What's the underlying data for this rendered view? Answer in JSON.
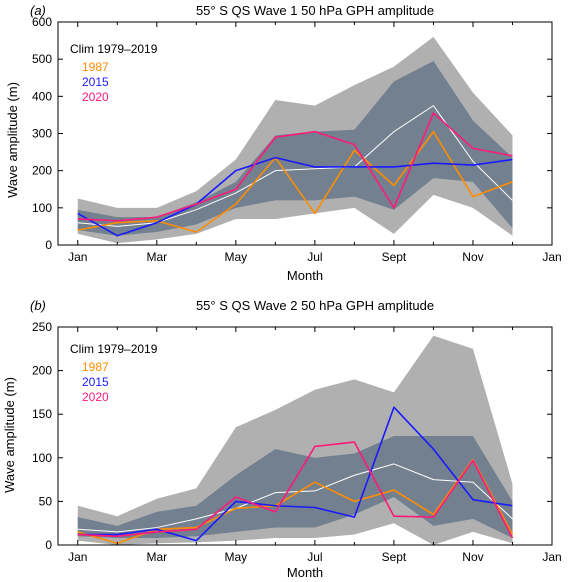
{
  "panels": [
    {
      "panel_label": "(a)",
      "chart_data": {
        "type": "area",
        "title": "55° S QS Wave 1 50 hPa GPH amplitude",
        "xlabel": "Month",
        "ylabel": "Wave amplitude (m)",
        "x": [
          1,
          2,
          3,
          4,
          5,
          6,
          7,
          8,
          9,
          10,
          11,
          12
        ],
        "xlim": [
          0.5,
          13
        ],
        "ylim": [
          0,
          600
        ],
        "yticks": [
          0,
          100,
          200,
          300,
          400,
          500,
          600
        ],
        "xticks": [
          1,
          3,
          5,
          7,
          9,
          11,
          13
        ],
        "xtick_labels": [
          "Jan",
          "Mar",
          "May",
          "Jul",
          "Sept",
          "Nov",
          "Jan"
        ],
        "legend_title": "Clim 1979–2019",
        "legend_position": "top-left",
        "outer_band": {
          "low": [
            30,
            5,
            15,
            30,
            70,
            70,
            85,
            100,
            30,
            135,
            100,
            25
          ],
          "high": [
            125,
            100,
            100,
            145,
            230,
            390,
            375,
            430,
            480,
            560,
            410,
            295
          ]
        },
        "inner_band": {
          "low": [
            40,
            25,
            35,
            55,
            100,
            120,
            120,
            130,
            95,
            180,
            170,
            45
          ],
          "high": [
            95,
            75,
            75,
            115,
            170,
            295,
            305,
            310,
            440,
            495,
            335,
            235
          ]
        },
        "series": [
          {
            "name": "",
            "color": "#ffffff",
            "values": [
              60,
              50,
              60,
              95,
              140,
              200,
              205,
              210,
              305,
              375,
              225,
              120
            ]
          },
          {
            "name": "1987",
            "color": "#ff8c00",
            "values": [
              40,
              60,
              65,
              35,
              110,
              235,
              85,
              255,
              160,
              305,
              130,
              170
            ]
          },
          {
            "name": "2015",
            "color": "#1a1aff",
            "values": [
              85,
              25,
              60,
              110,
              200,
              235,
              210,
              210,
              210,
              220,
              215,
              230
            ]
          },
          {
            "name": "2020",
            "color": "#ff1a7a",
            "values": [
              70,
              65,
              75,
              110,
              150,
              290,
              305,
              270,
              100,
              355,
              260,
              240
            ]
          }
        ]
      }
    },
    {
      "panel_label": "(b)",
      "chart_data": {
        "type": "area",
        "title": "55° S QS Wave 2 50 hPa GPH amplitude",
        "xlabel": "Month",
        "ylabel": "Wave amplitude (m)",
        "x": [
          1,
          2,
          3,
          4,
          5,
          6,
          7,
          8,
          9,
          10,
          11,
          12
        ],
        "xlim": [
          0.5,
          13
        ],
        "ylim": [
          0,
          250
        ],
        "yticks": [
          0,
          50,
          100,
          150,
          200,
          250
        ],
        "xticks": [
          1,
          3,
          5,
          7,
          9,
          11,
          13
        ],
        "xtick_labels": [
          "Jan",
          "Mar",
          "May",
          "Jul",
          "Sept",
          "Nov",
          "Jan"
        ],
        "legend_title": "Clim 1979–2019",
        "legend_position": "top-left",
        "outer_band": {
          "low": [
            5,
            0,
            2,
            3,
            5,
            8,
            8,
            12,
            25,
            0,
            15,
            2
          ],
          "high": [
            45,
            33,
            53,
            65,
            135,
            155,
            178,
            190,
            175,
            240,
            225,
            70
          ]
        },
        "inner_band": {
          "low": [
            10,
            8,
            8,
            10,
            15,
            20,
            20,
            35,
            55,
            22,
            30,
            8
          ],
          "high": [
            32,
            22,
            38,
            45,
            80,
            110,
            100,
            105,
            125,
            125,
            125,
            50
          ]
        },
        "series": [
          {
            "name": "",
            "color": "#ffffff",
            "values": [
              18,
              15,
              20,
              30,
              42,
              60,
              62,
              80,
              93,
              75,
              72,
              30
            ]
          },
          {
            "name": "1987",
            "color": "#ff8c00",
            "values": [
              15,
              2,
              18,
              20,
              42,
              45,
              72,
              50,
              63,
              35,
              98,
              12
            ]
          },
          {
            "name": "2015",
            "color": "#1a1aff",
            "values": [
              12,
              12,
              18,
              5,
              50,
              45,
              43,
              32,
              158,
              110,
              52,
              45
            ]
          },
          {
            "name": "2020",
            "color": "#ff1a7a",
            "values": [
              12,
              10,
              15,
              18,
              55,
              38,
              113,
              118,
              33,
              32,
              97,
              8
            ]
          }
        ]
      }
    }
  ],
  "colors": {
    "outer_band": "#b0b0b0",
    "inner_band": "#73808f"
  }
}
